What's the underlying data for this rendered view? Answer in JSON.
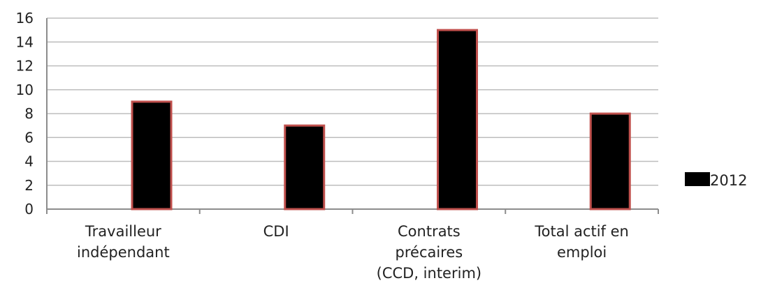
{
  "chart_data": {
    "type": "bar",
    "categories": [
      [
        "Travailleur",
        "indépendant"
      ],
      [
        "CDI"
      ],
      [
        "Contrats",
        "précaires",
        "(CCD, interim)"
      ],
      [
        "Total actif en",
        "emploi"
      ]
    ],
    "series": [
      {
        "name": "2012",
        "values": [
          9,
          7,
          15,
          8
        ],
        "color": "#000000",
        "border_color": "#c0504d"
      }
    ],
    "ylim": [
      0,
      16
    ],
    "yticks": [
      "0",
      "2",
      "4",
      "6",
      "8",
      "10",
      "12",
      "14",
      "16"
    ],
    "grid": true,
    "legend_position": "right"
  }
}
